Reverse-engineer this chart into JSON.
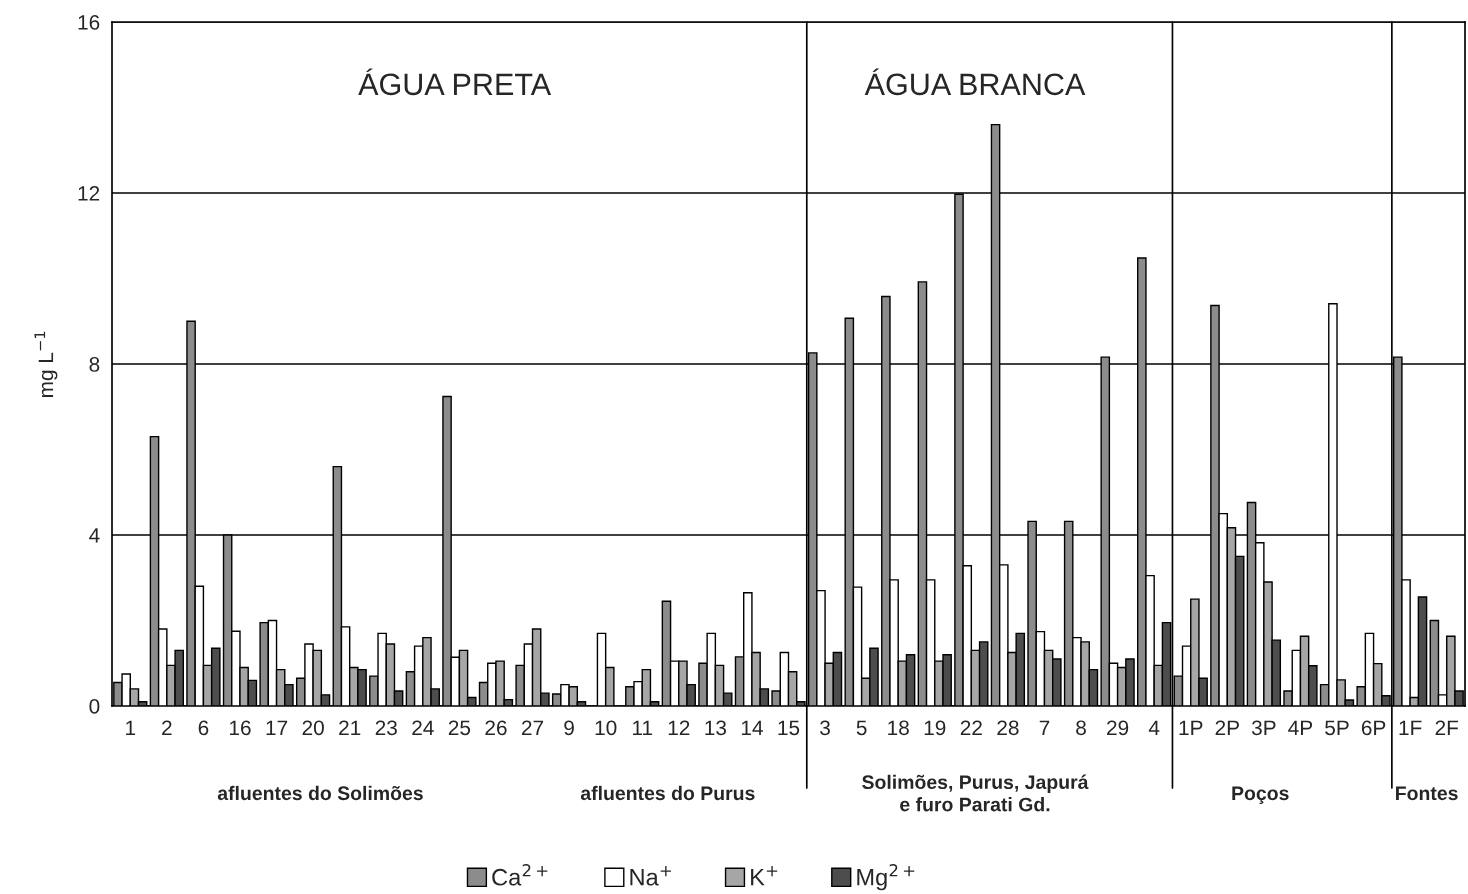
{
  "chart_data": {
    "type": "bar",
    "categories": [
      "1",
      "2",
      "6",
      "16",
      "17",
      "20",
      "21",
      "23",
      "24",
      "25",
      "26",
      "27",
      "9",
      "10",
      "11",
      "12",
      "13",
      "14",
      "15",
      "3",
      "5",
      "18",
      "19",
      "22",
      "28",
      "7",
      "8",
      "29",
      "4",
      "1P",
      "2P",
      "3P",
      "4P",
      "5P",
      "6P",
      "1F",
      "2F"
    ],
    "series": [
      {
        "name": "Ca$^{2+}$",
        "color": "#8c8c8c",
        "values": [
          0.55,
          6.3,
          9.0,
          4.0,
          1.95,
          0.65,
          5.6,
          0.7,
          0.8,
          7.24,
          0.55,
          0.95,
          0.28,
          null,
          0.45,
          2.45,
          1.0,
          1.15,
          0.35,
          8.26,
          9.07,
          9.58,
          9.92,
          11.97,
          13.6,
          4.32,
          4.32,
          8.16,
          10.48,
          0.7,
          9.37,
          4.76,
          0.35,
          0.5,
          0.45,
          8.16,
          2.0
        ]
      },
      {
        "name": "Na$^{+}$",
        "color": "#ffffff",
        "values": [
          0.75,
          1.8,
          2.8,
          1.75,
          2.0,
          1.45,
          1.85,
          1.7,
          1.4,
          1.14,
          1.0,
          1.45,
          0.5,
          1.7,
          0.57,
          1.05,
          1.7,
          2.65,
          1.25,
          2.7,
          2.78,
          2.95,
          2.95,
          3.28,
          3.3,
          1.74,
          1.6,
          1.0,
          3.05,
          1.4,
          4.5,
          3.82,
          1.3,
          9.41,
          1.7,
          2.95,
          0.26
        ]
      },
      {
        "name": "K$^{+}$",
        "color": "#a6a6a6",
        "values": [
          0.4,
          0.95,
          0.95,
          0.9,
          0.85,
          1.3,
          0.9,
          1.45,
          1.6,
          1.3,
          1.05,
          1.8,
          0.45,
          0.9,
          0.85,
          1.05,
          0.95,
          1.25,
          0.8,
          1.0,
          0.65,
          1.05,
          1.05,
          1.3,
          1.25,
          1.3,
          1.5,
          0.9,
          0.95,
          2.5,
          4.17,
          2.9,
          1.63,
          0.61,
          0.99,
          0.2,
          1.63
        ]
      },
      {
        "name": "Mg$^{2+}$",
        "color": "#4d4d4d",
        "values": [
          0.1,
          1.3,
          1.35,
          0.6,
          0.5,
          0.26,
          0.85,
          0.35,
          0.4,
          0.2,
          0.15,
          0.3,
          0.1,
          null,
          0.1,
          0.5,
          0.3,
          0.4,
          0.1,
          1.25,
          1.35,
          1.2,
          1.2,
          1.5,
          1.7,
          1.1,
          0.85,
          1.1,
          1.95,
          0.65,
          3.5,
          1.54,
          0.94,
          0.14,
          0.24,
          2.55,
          0.35
        ]
      }
    ],
    "ylabel": "mg L$^{−1}$",
    "ylim": [
      0,
      16
    ],
    "yticks": [
      0,
      4,
      8,
      12,
      16
    ],
    "grid": "y",
    "legend": "bottom",
    "annotations": [
      "ÁGUA PRETA",
      "ÁGUA BRANCA",
      "afluentes do Solimões",
      "afluentes do Purus",
      "Solimões, Purus, Japurá\ne furo Parati Gd.",
      "Poços",
      "Fontes"
    ]
  }
}
